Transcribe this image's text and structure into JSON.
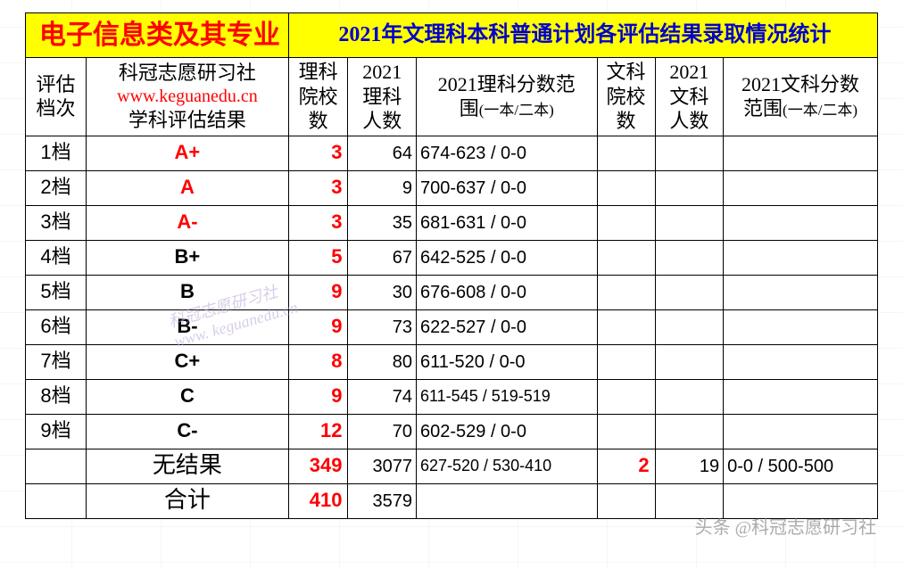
{
  "title": {
    "left": "电子信息类及其专业",
    "right": "2021年文理科本科普通计划各评估结果录取情况统计"
  },
  "headers": {
    "c1": "评估\n档次",
    "c2_l1": "科冠志愿研习社",
    "c2_l2": "www.keguanedu.cn",
    "c2_l3": "学科评估结果",
    "c3": "理科\n院校\n数",
    "c4": "2021\n理科\n人数",
    "c5_main": "2021理科分数范\n围",
    "c5_sub": "(一本/二本)",
    "c6": "文科\n院校\n数",
    "c7": "2021\n文科\n人数",
    "c8_main": "2021文科分数\n范围",
    "c8_sub": "(一本/二本)"
  },
  "rows": [
    {
      "lvl": "1档",
      "grade": "A+",
      "grade_red": true,
      "sci_n": "3",
      "sci_p": "64",
      "sci_r": "674-623 / 0-0",
      "art_n": "",
      "art_p": "",
      "art_r": ""
    },
    {
      "lvl": "2档",
      "grade": "A",
      "grade_red": true,
      "sci_n": "3",
      "sci_p": "9",
      "sci_r": "700-637 / 0-0",
      "art_n": "",
      "art_p": "",
      "art_r": ""
    },
    {
      "lvl": "3档",
      "grade": "A-",
      "grade_red": true,
      "sci_n": "3",
      "sci_p": "35",
      "sci_r": "681-631 / 0-0",
      "art_n": "",
      "art_p": "",
      "art_r": ""
    },
    {
      "lvl": "4档",
      "grade": "B+",
      "grade_red": false,
      "sci_n": "5",
      "sci_p": "67",
      "sci_r": "642-525 / 0-0",
      "art_n": "",
      "art_p": "",
      "art_r": ""
    },
    {
      "lvl": "5档",
      "grade": "B",
      "grade_red": false,
      "sci_n": "9",
      "sci_p": "30",
      "sci_r": "676-608 / 0-0",
      "art_n": "",
      "art_p": "",
      "art_r": ""
    },
    {
      "lvl": "6档",
      "grade": "B-",
      "grade_red": false,
      "sci_n": "9",
      "sci_p": "73",
      "sci_r": "622-527 / 0-0",
      "art_n": "",
      "art_p": "",
      "art_r": ""
    },
    {
      "lvl": "7档",
      "grade": "C+",
      "grade_red": false,
      "sci_n": "8",
      "sci_p": "80",
      "sci_r": "611-520 / 0-0",
      "art_n": "",
      "art_p": "",
      "art_r": ""
    },
    {
      "lvl": "8档",
      "grade": "C",
      "grade_red": false,
      "sci_n": "9",
      "sci_p": "74",
      "sci_r": "611-545 / 519-519",
      "art_n": "",
      "art_p": "",
      "art_r": "",
      "small_range": true
    },
    {
      "lvl": "9档",
      "grade": "C-",
      "grade_red": false,
      "sci_n": "12",
      "sci_p": "70",
      "sci_r": "602-529 / 0-0",
      "art_n": "",
      "art_p": "",
      "art_r": ""
    },
    {
      "lvl": "",
      "grade": "无结果",
      "grade_red": false,
      "sum": true,
      "sci_n": "349",
      "sci_p": "3077",
      "sci_r": "627-520 / 530-410",
      "art_n": "2",
      "art_p": "19",
      "art_r": "0-0 / 500-500",
      "small_range": true
    },
    {
      "lvl": "",
      "grade": "合计",
      "grade_red": false,
      "sum": true,
      "sci_n": "410",
      "sci_p": "3579",
      "sci_r": "",
      "art_n": "",
      "art_p": "",
      "art_r": ""
    }
  ],
  "watermark": {
    "line1": "科冠志愿研习社",
    "line2": "www. keguanedu.cn"
  },
  "footer": "头条 @科冠志愿研习社",
  "colors": {
    "title_bg": "#ffff00",
    "title_left": "#ff0000",
    "title_right": "#0000cc",
    "red": "#ff0000",
    "black": "#000000",
    "border": "#000000"
  }
}
